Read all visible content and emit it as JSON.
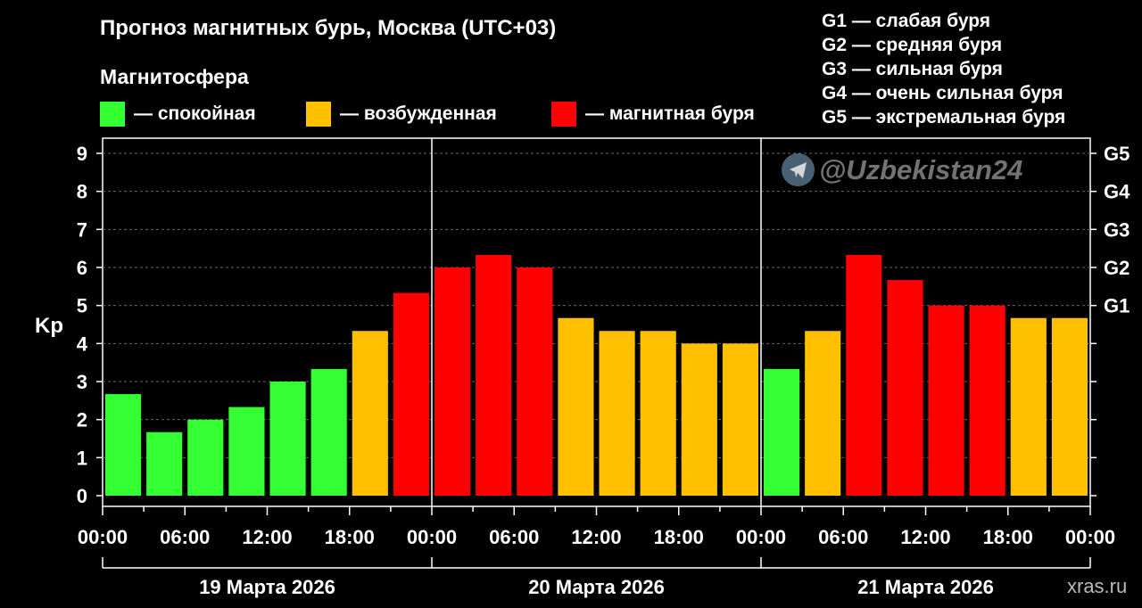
{
  "title": "Прогноз магнитных бурь, Москва (UTC+03)",
  "legend": {
    "title": "Магнитосфера",
    "items": [
      {
        "label": "— спокойная",
        "color": "#33ff33"
      },
      {
        "label": "— возбужденная",
        "color": "#ffc000"
      },
      {
        "label": "— магнитная буря",
        "color": "#ff0000"
      }
    ]
  },
  "g_scale_legend": [
    "G1 — слабая буря",
    "G2 — средняя буря",
    "G3 — сильная буря",
    "G4 — очень сильная буря",
    "G5 — экстремальная буря"
  ],
  "watermark": "@Uzbekistan24",
  "watermark_icon": "telegram-icon",
  "source": "xras.ru",
  "chart_data": {
    "type": "bar",
    "ylabel": "Kp",
    "ylim": [
      0,
      9
    ],
    "yticks": [
      "0",
      "1",
      "2",
      "3",
      "4",
      "5",
      "6",
      "7",
      "8",
      "9"
    ],
    "right_ticks": [
      {
        "value": 5,
        "label": "G1"
      },
      {
        "value": 6,
        "label": "G2"
      },
      {
        "value": 7,
        "label": "G3"
      },
      {
        "value": 8,
        "label": "G4"
      },
      {
        "value": 9,
        "label": "G5"
      }
    ],
    "xtick_labels": [
      "00:00",
      "06:00",
      "12:00",
      "18:00",
      "00:00",
      "06:00",
      "12:00",
      "18:00",
      "00:00",
      "06:00",
      "12:00",
      "18:00",
      "00:00"
    ],
    "days": [
      "19 Марта 2026",
      "20 Марта 2026",
      "21 Марта 2026"
    ],
    "grid": true,
    "bar_interval": "3h",
    "values": [
      2.67,
      1.67,
      2.0,
      2.33,
      3.0,
      3.33,
      4.33,
      5.33,
      6.0,
      6.33,
      6.0,
      4.67,
      4.33,
      4.33,
      4.0,
      4.0,
      3.33,
      4.33,
      6.33,
      5.67,
      5.0,
      5.0,
      4.67,
      4.67
    ],
    "colors": {
      "quiet": "#33ff33",
      "active": "#ffc000",
      "storm": "#ff0000"
    }
  }
}
